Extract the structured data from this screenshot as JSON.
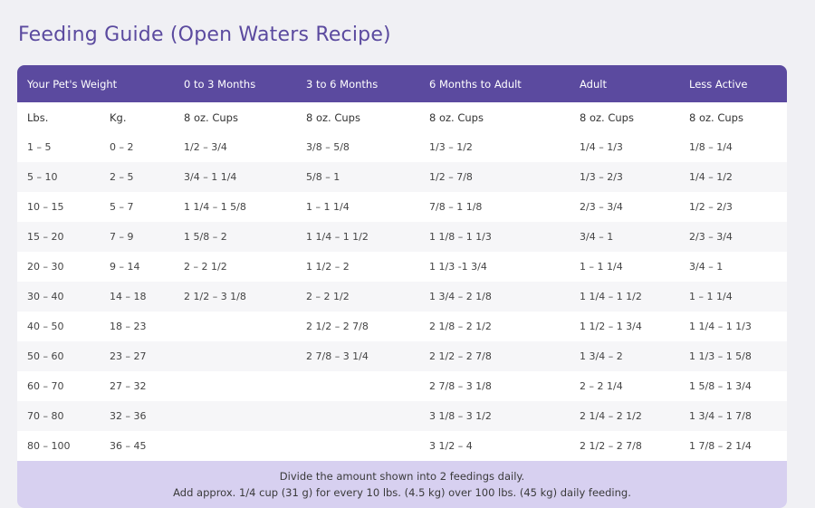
{
  "title": "Feeding Guide (Open Waters Recipe)",
  "table": {
    "headers": [
      "Your Pet's Weight",
      "0 to 3 Months",
      "3 to 6 Months",
      "6 Months to Adult",
      "Adult",
      "Less Active"
    ],
    "subheaders": [
      "Lbs.",
      "Kg.",
      "8 oz. Cups",
      "8 oz. Cups",
      "8 oz. Cups",
      "8 oz. Cups",
      "8 oz. Cups"
    ],
    "rows": [
      [
        "1 – 5",
        "0 – 2",
        "1/2 – 3/4",
        "3/8 – 5/8",
        "1/3 – 1/2",
        "1/4 – 1/3",
        "1/8 – 1/4"
      ],
      [
        "5 – 10",
        "2 – 5",
        "3/4 – 1 1/4",
        "5/8 – 1",
        "1/2 – 7/8",
        "1/3 – 2/3",
        "1/4 – 1/2"
      ],
      [
        "10 – 15",
        "5 – 7",
        "1 1/4 – 1 5/8",
        "1 – 1 1/4",
        "7/8 – 1 1/8",
        "2/3 – 3/4",
        "1/2 – 2/3"
      ],
      [
        "15 – 20",
        "7 – 9",
        "1 5/8 – 2",
        "1 1/4 – 1 1/2",
        "1 1/8 – 1 1/3",
        "3/4 – 1",
        "2/3 – 3/4"
      ],
      [
        "20 – 30",
        "9 – 14",
        "2 – 2 1/2",
        "1 1/2 – 2",
        "1 1/3 -1 3/4",
        "1 – 1 1/4",
        "3/4 – 1"
      ],
      [
        "30 – 40",
        "14 – 18",
        "2 1/2 – 3 1/8",
        "2 – 2 1/2",
        "1 3/4 – 2 1/8",
        "1 1/4 – 1 1/2",
        "1 – 1 1/4"
      ],
      [
        "40 – 50",
        "18 – 23",
        "",
        "2 1/2 – 2 7/8",
        "2 1/8 – 2 1/2",
        "1 1/2 – 1 3/4",
        "1 1/4 – 1 1/3"
      ],
      [
        "50 – 60",
        "23 – 27",
        "",
        "2 7/8 – 3 1/4",
        "2 1/2 – 2 7/8",
        "1 3/4 – 2",
        "1 1/3 – 1 5/8"
      ],
      [
        "60 – 70",
        "27 – 32",
        "",
        "",
        "2 7/8 – 3 1/8",
        "2 – 2 1/4",
        "1 5/8 – 1 3/4"
      ],
      [
        "70 – 80",
        "32 – 36",
        "",
        "",
        "3 1/8 – 3 1/2",
        "2 1/4 – 2 1/2",
        "1 3/4 – 1 7/8"
      ],
      [
        "80 – 100",
        "36 – 45",
        "",
        "",
        "3 1/2 – 4",
        "2 1/2 – 2 7/8",
        "1 7/8 – 2 1/4"
      ]
    ]
  },
  "footer": {
    "line1": "Divide the amount shown into 2 feedings daily.",
    "line2": "Add approx. 1/4 cup (31 g) for every 10 lbs. (4.5 kg) over 100 lbs. (45 kg) daily feeding."
  },
  "colors": {
    "accent": "#5b4a9f",
    "footer_bg": "#d7d0f0"
  }
}
